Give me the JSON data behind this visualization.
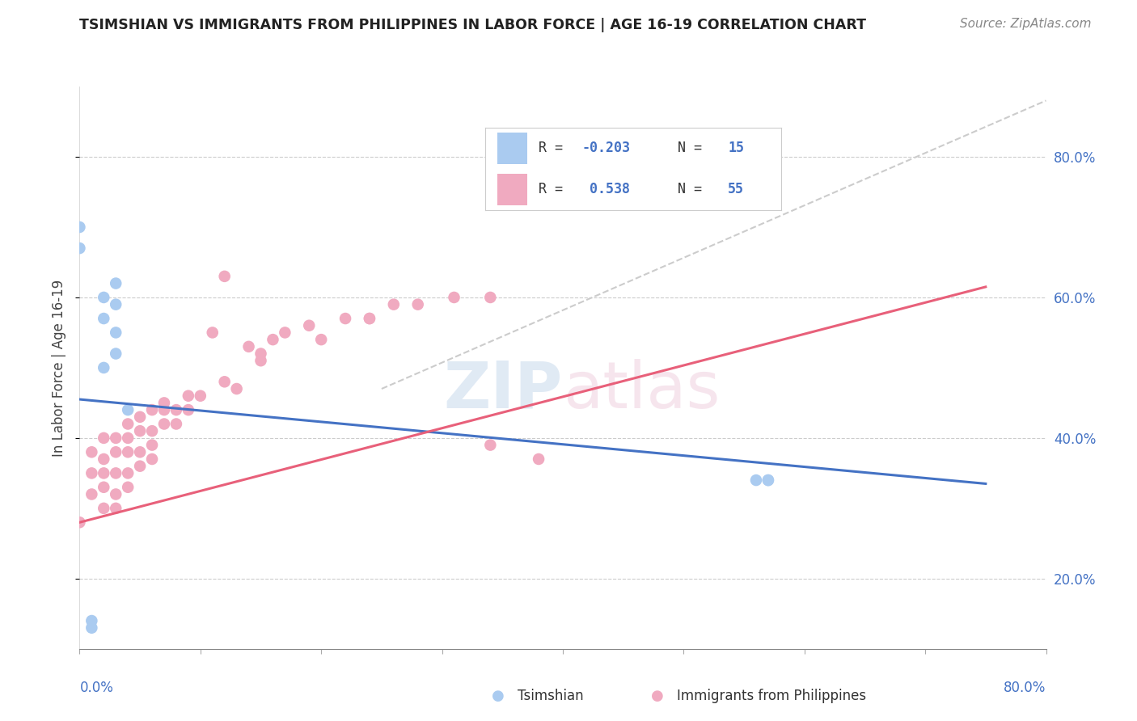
{
  "title": "TSIMSHIAN VS IMMIGRANTS FROM PHILIPPINES IN LABOR FORCE | AGE 16-19 CORRELATION CHART",
  "source": "Source: ZipAtlas.com",
  "ylabel": "In Labor Force | Age 16-19",
  "xlim": [
    0.0,
    0.8
  ],
  "ylim": [
    0.1,
    0.9
  ],
  "tsimshian_R": "-0.203",
  "tsimshian_N": "15",
  "philippines_R": "0.538",
  "philippines_N": "55",
  "tsimshian_color": "#aacbf0",
  "philippines_color": "#f0aac0",
  "tsimshian_line_color": "#4472c4",
  "philippines_line_color": "#e8607a",
  "trend_line_color": "#cccccc",
  "tsimshian_x": [
    0.0,
    0.0,
    0.01,
    0.01,
    0.02,
    0.03,
    0.03,
    0.04,
    0.56,
    0.57,
    0.57,
    0.02,
    0.02,
    0.03,
    0.03
  ],
  "tsimshian_y": [
    0.7,
    0.67,
    0.14,
    0.13,
    0.5,
    0.55,
    0.52,
    0.44,
    0.34,
    0.34,
    0.34,
    0.6,
    0.57,
    0.62,
    0.59
  ],
  "philippines_x": [
    0.0,
    0.01,
    0.01,
    0.01,
    0.02,
    0.02,
    0.02,
    0.02,
    0.02,
    0.03,
    0.03,
    0.03,
    0.03,
    0.03,
    0.04,
    0.04,
    0.04,
    0.04,
    0.04,
    0.05,
    0.05,
    0.05,
    0.05,
    0.06,
    0.06,
    0.06,
    0.07,
    0.07,
    0.08,
    0.08,
    0.09,
    0.09,
    0.1,
    0.11,
    0.12,
    0.13,
    0.14,
    0.15,
    0.17,
    0.19,
    0.2,
    0.22,
    0.24,
    0.26,
    0.28,
    0.31,
    0.34,
    0.34,
    0.24,
    0.12,
    0.38,
    0.15,
    0.16,
    0.06,
    0.07
  ],
  "philippines_y": [
    0.28,
    0.38,
    0.35,
    0.32,
    0.4,
    0.37,
    0.35,
    0.33,
    0.3,
    0.4,
    0.38,
    0.35,
    0.32,
    0.3,
    0.42,
    0.4,
    0.38,
    0.35,
    0.33,
    0.43,
    0.41,
    0.38,
    0.36,
    0.44,
    0.41,
    0.39,
    0.44,
    0.42,
    0.44,
    0.42,
    0.46,
    0.44,
    0.46,
    0.55,
    0.48,
    0.47,
    0.53,
    0.51,
    0.55,
    0.56,
    0.54,
    0.57,
    0.57,
    0.59,
    0.59,
    0.6,
    0.6,
    0.39,
    0.57,
    0.63,
    0.37,
    0.52,
    0.54,
    0.37,
    0.45
  ],
  "tsimshian_trend": [
    0.0,
    0.75,
    0.455,
    0.335
  ],
  "philippines_trend": [
    0.0,
    0.75,
    0.28,
    0.615
  ],
  "diagonal_trend": [
    0.25,
    0.8,
    0.47,
    0.88
  ]
}
